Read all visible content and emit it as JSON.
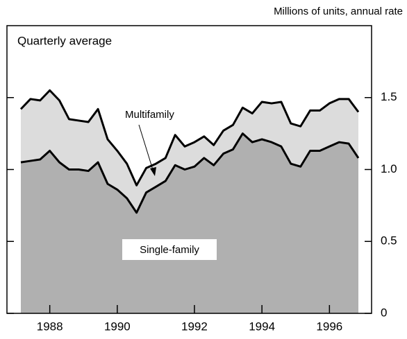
{
  "chart_data": {
    "type": "stacked-area",
    "title": "Millions of units, annual rate",
    "subtitle": "Quarterly average",
    "categories": [
      null,
      null,
      null,
      "1988",
      null,
      null,
      null,
      null,
      null,
      null,
      "1990",
      null,
      null,
      null,
      null,
      null,
      null,
      null,
      "1992",
      null,
      null,
      null,
      null,
      null,
      null,
      "1994",
      null,
      null,
      null,
      null,
      null,
      null,
      "1996",
      null,
      null,
      null
    ],
    "series": [
      {
        "name": "Single-family",
        "color": "#b0b0b0",
        "values": [
          1.05,
          1.06,
          1.07,
          1.13,
          1.05,
          1.0,
          1.0,
          0.99,
          1.05,
          0.9,
          0.86,
          0.8,
          0.7,
          0.84,
          0.88,
          0.92,
          1.03,
          1.0,
          1.02,
          1.08,
          1.03,
          1.11,
          1.14,
          1.25,
          1.19,
          1.21,
          1.19,
          1.16,
          1.04,
          1.02,
          1.13,
          1.13,
          1.16,
          1.19,
          1.18,
          1.08
        ]
      },
      {
        "name": "Multifamily",
        "color": "#dcdcdc",
        "values": [
          0.37,
          0.43,
          0.41,
          0.42,
          0.43,
          0.35,
          0.34,
          0.34,
          0.37,
          0.31,
          0.27,
          0.24,
          0.19,
          0.17,
          0.16,
          0.16,
          0.21,
          0.16,
          0.17,
          0.15,
          0.14,
          0.16,
          0.17,
          0.18,
          0.2,
          0.26,
          0.27,
          0.31,
          0.28,
          0.28,
          0.28,
          0.28,
          0.3,
          0.3,
          0.31,
          0.32
        ]
      }
    ],
    "ylim": [
      0,
      2
    ],
    "yticks": [
      0,
      0.5,
      {
        "value": 1,
        "label": "1.0"
      },
      1.5
    ]
  }
}
